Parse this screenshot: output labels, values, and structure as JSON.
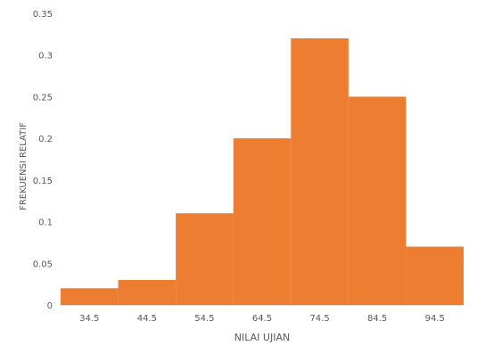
{
  "chart_data": {
    "type": "bar",
    "categories": [
      "34.5",
      "44.5",
      "54.5",
      "64.5",
      "74.5",
      "84.5",
      "94.5"
    ],
    "values": [
      0.02,
      0.03,
      0.11,
      0.2,
      0.32,
      0.25,
      0.07
    ],
    "xlabel": "NILAI UJIAN",
    "ylabel": "FREKUENSI RELATIF",
    "ylim": [
      0,
      0.35
    ],
    "yticks": [
      "0",
      "0.05",
      "0.1",
      "0.15",
      "0.2",
      "0.25",
      "0.3",
      "0.35"
    ],
    "grid": false,
    "bar_color": "#ED7D31"
  }
}
